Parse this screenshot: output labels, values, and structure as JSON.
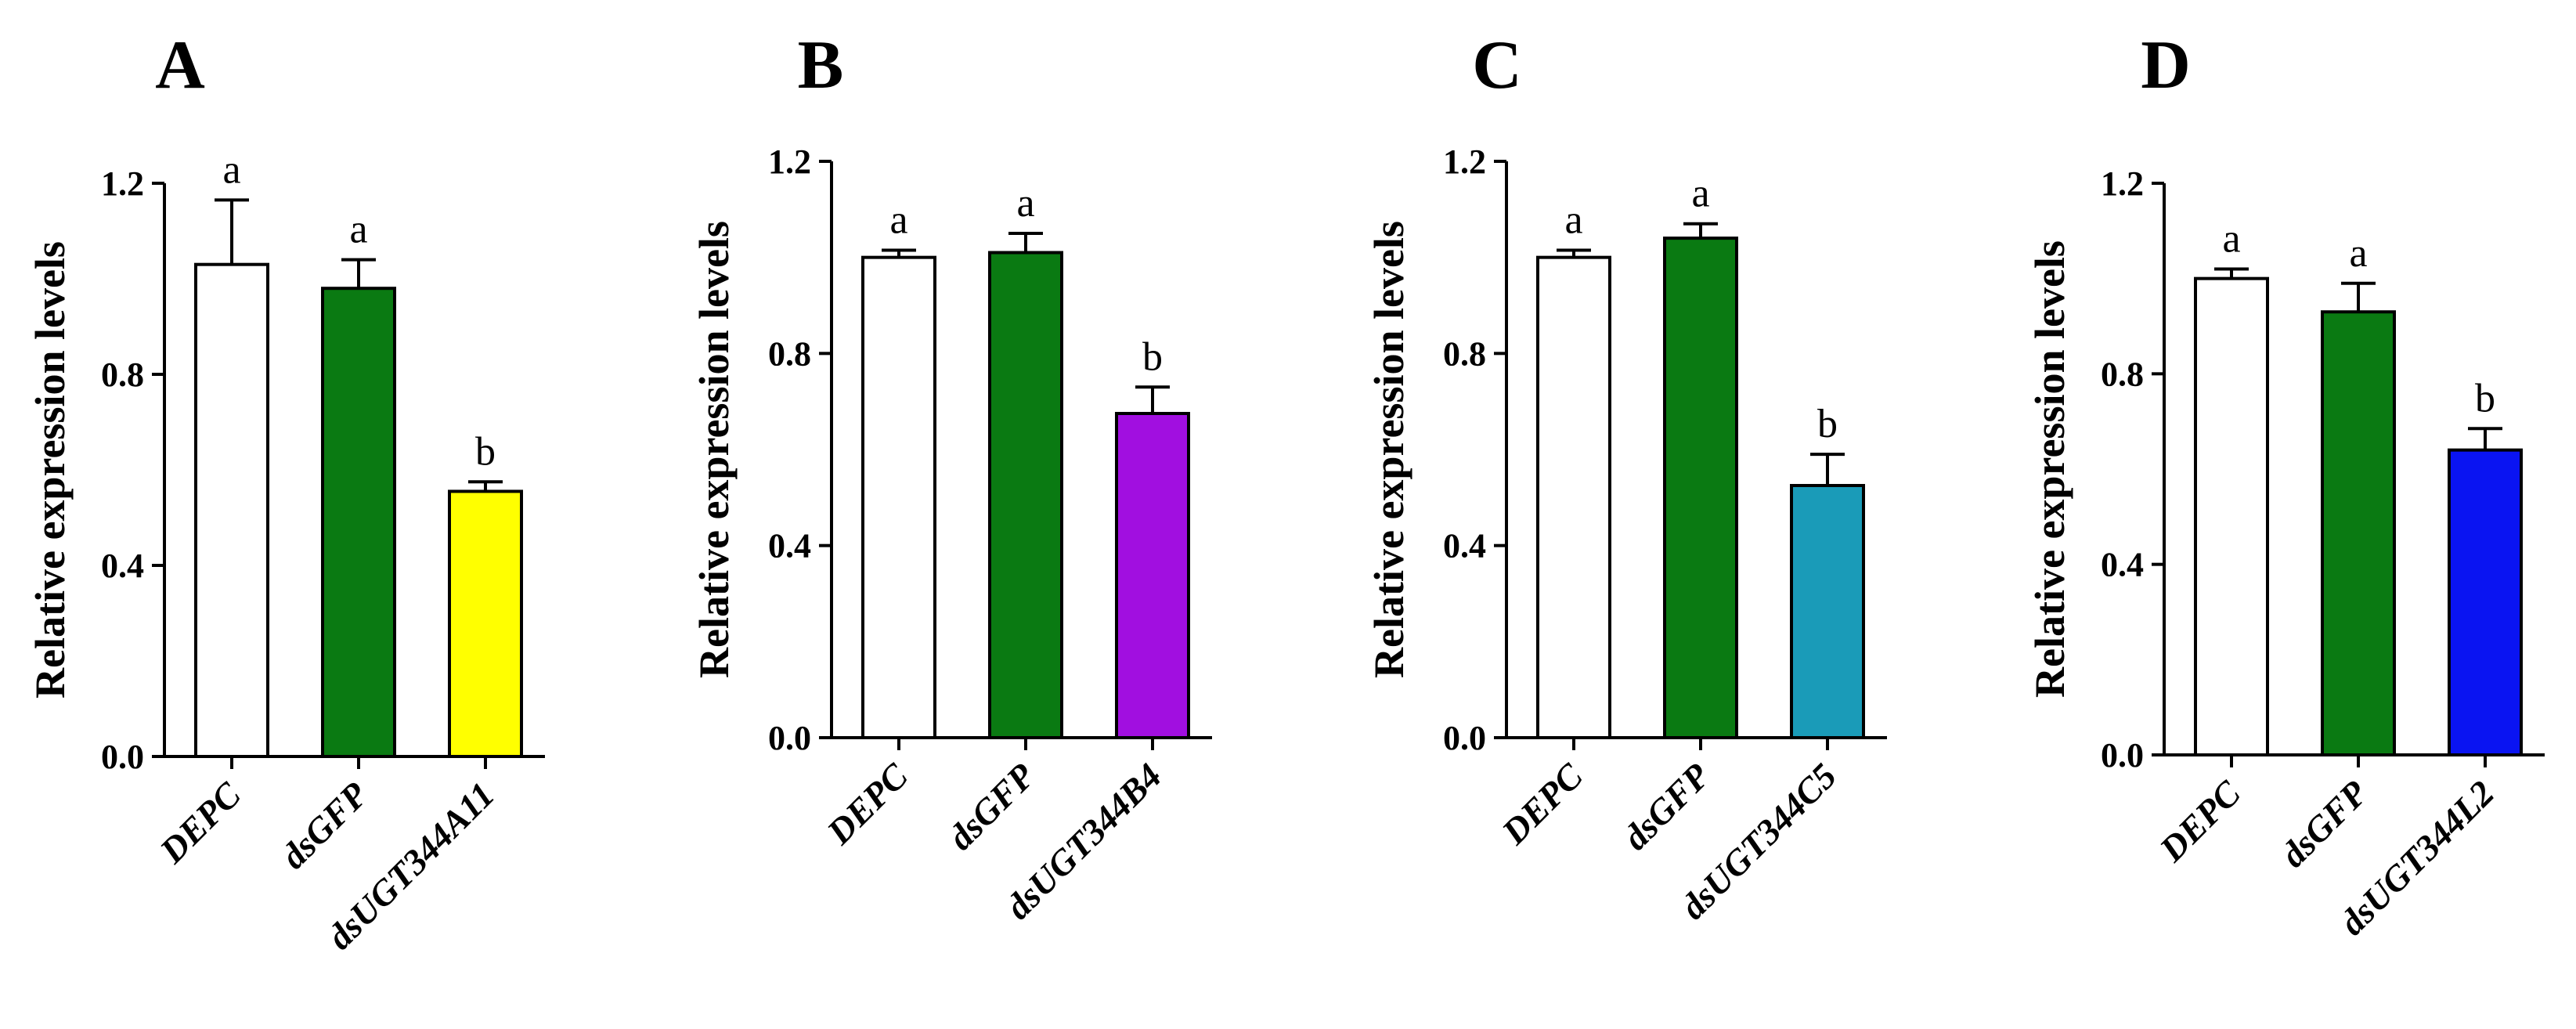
{
  "figure": {
    "panels": [
      "A",
      "B",
      "C",
      "D"
    ]
  },
  "chart_data": [
    {
      "type": "bar",
      "panel_label": "A",
      "categories": [
        "DEPC",
        "dsGFP",
        "dsUGT344A11"
      ],
      "category_prefixes": [
        "",
        "ds",
        "ds"
      ],
      "category_suffixes": [
        "DEPC",
        "GFP",
        "UGT344A11"
      ],
      "values": [
        1.03,
        0.98,
        0.555
      ],
      "errors": [
        0.135,
        0.06,
        0.02
      ],
      "colors": [
        "#ffffff",
        "#0a7a12",
        "#ffff00"
      ],
      "significance": [
        "a",
        "a",
        "b"
      ],
      "ylabel": "Relative expression levels",
      "ylim": [
        0,
        1.2
      ],
      "yticks": [
        0.0,
        0.4,
        0.8,
        1.2
      ],
      "ytick_labels": [
        "0.0",
        "0.4",
        "0.8",
        "1.2"
      ]
    },
    {
      "type": "bar",
      "panel_label": "B",
      "categories": [
        "DEPC",
        "dsGFP",
        "dsUGT344B4"
      ],
      "category_prefixes": [
        "",
        "ds",
        "ds"
      ],
      "category_suffixes": [
        "DEPC",
        "GFP",
        "UGT344B4"
      ],
      "values": [
        1.0,
        1.01,
        0.675
      ],
      "errors": [
        0.015,
        0.04,
        0.055
      ],
      "colors": [
        "#ffffff",
        "#0a7a12",
        "#a10fe0"
      ],
      "significance": [
        "a",
        "a",
        "b"
      ],
      "ylabel": "Relative expression levels",
      "ylim": [
        0,
        1.2
      ],
      "yticks": [
        0.0,
        0.4,
        0.8,
        1.2
      ],
      "ytick_labels": [
        "0.0",
        "0.4",
        "0.8",
        "1.2"
      ]
    },
    {
      "type": "bar",
      "panel_label": "C",
      "categories": [
        "DEPC",
        "dsGFP",
        "dsUGT344C5"
      ],
      "category_prefixes": [
        "",
        "ds",
        "ds"
      ],
      "category_suffixes": [
        "DEPC",
        "GFP",
        "UGT344C5"
      ],
      "values": [
        1.0,
        1.04,
        0.525
      ],
      "errors": [
        0.015,
        0.03,
        0.065
      ],
      "colors": [
        "#ffffff",
        "#0a7a12",
        "#1a9bb8"
      ],
      "significance": [
        "a",
        "a",
        "b"
      ],
      "ylabel": "Relative expression levels",
      "ylim": [
        0,
        1.2
      ],
      "yticks": [
        0.0,
        0.4,
        0.8,
        1.2
      ],
      "ytick_labels": [
        "0.0",
        "0.4",
        "0.8",
        "1.2"
      ]
    },
    {
      "type": "bar",
      "panel_label": "D",
      "categories": [
        "DEPC",
        "dsGFP",
        "dsUGT344L2"
      ],
      "category_prefixes": [
        "",
        "ds",
        "ds"
      ],
      "category_suffixes": [
        "DEPC",
        "GFP",
        "UGT344L2"
      ],
      "values": [
        1.0,
        0.93,
        0.64
      ],
      "errors": [
        0.02,
        0.06,
        0.045
      ],
      "colors": [
        "#ffffff",
        "#0a7a12",
        "#0a14f2"
      ],
      "significance": [
        "a",
        "a",
        "b"
      ],
      "ylabel": "Relative expression levels",
      "ylim": [
        0,
        1.2
      ],
      "yticks": [
        0.0,
        0.4,
        0.8,
        1.2
      ],
      "ytick_labels": [
        "0.0",
        "0.4",
        "0.8",
        "1.2"
      ]
    }
  ]
}
